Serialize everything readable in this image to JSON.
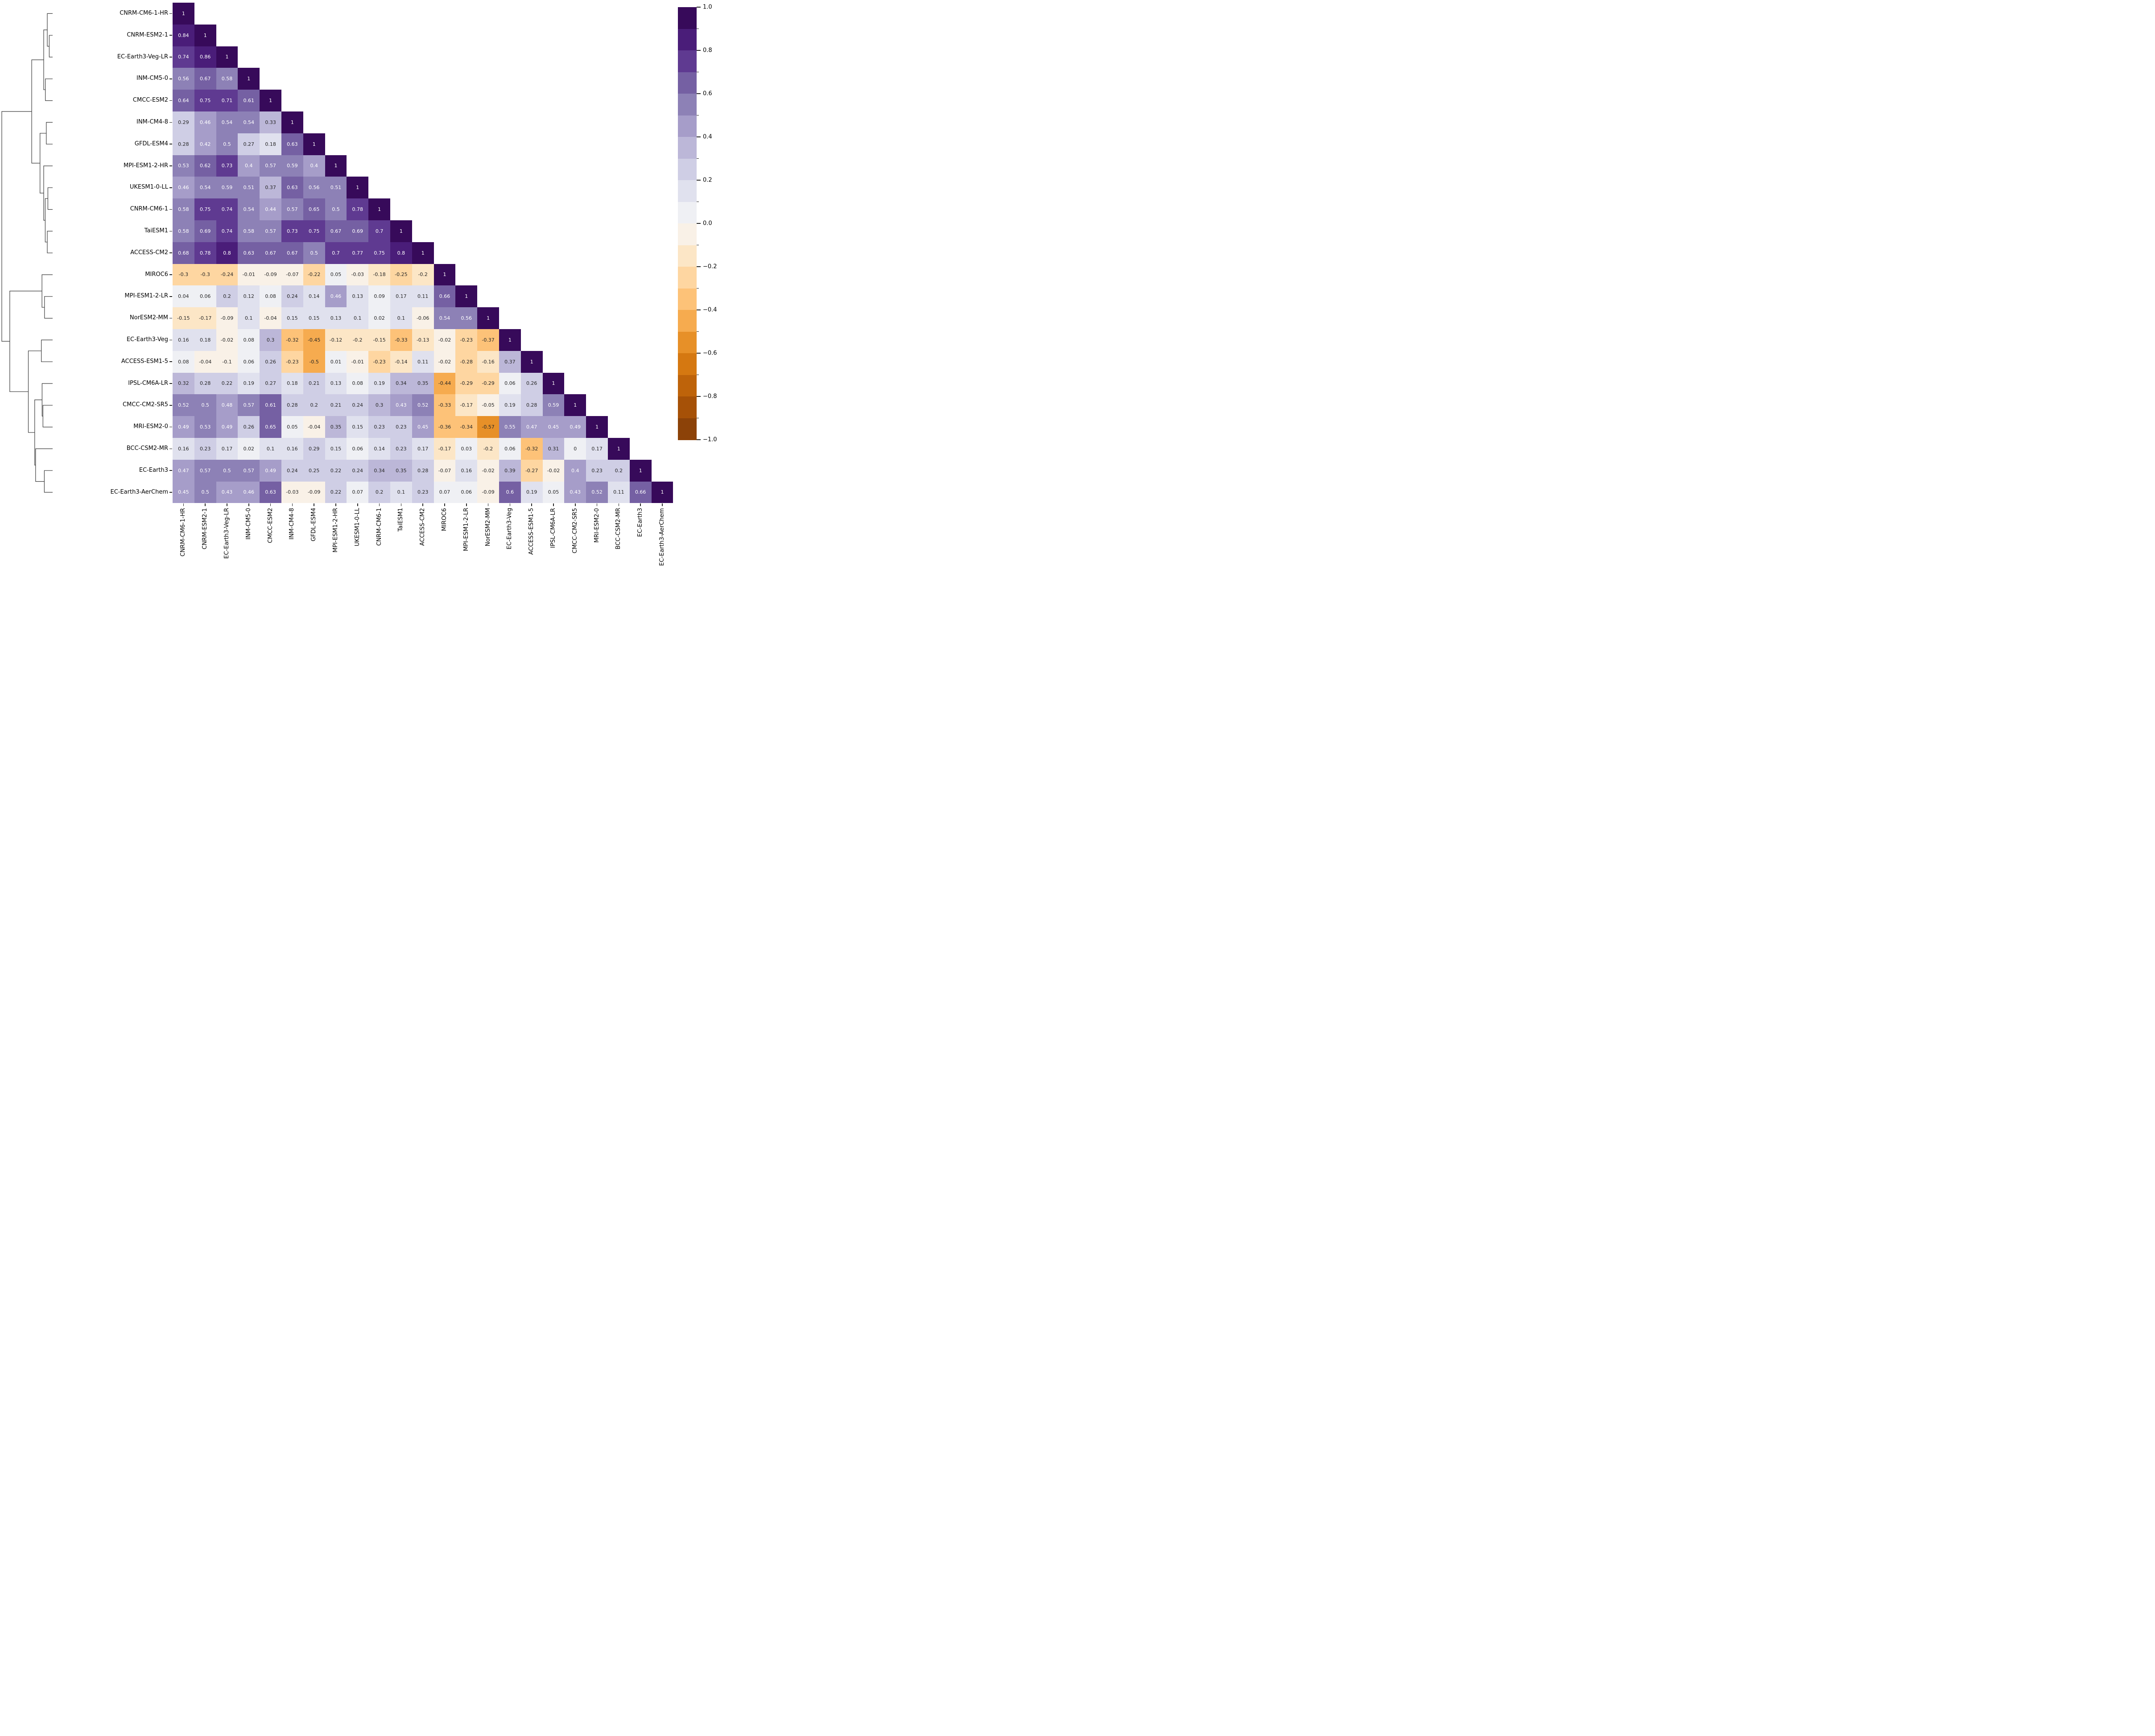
{
  "chart_data": {
    "type": "heatmap",
    "subtype": "correlation-matrix-lower-triangle-with-dendrogram",
    "title": "",
    "xlabel": "",
    "ylabel": "",
    "grid": false,
    "legend_position": "right-colorbar",
    "models": [
      "CNRM-CM6-1-HR",
      "CNRM-ESM2-1",
      "EC-Earth3-Veg-LR",
      "INM-CM5-0",
      "CMCC-ESM2",
      "INM-CM4-8",
      "GFDL-ESM4",
      "MPI-ESM1-2-HR",
      "UKESM1-0-LL",
      "CNRM-CM6-1",
      "TaiESM1",
      "ACCESS-CM2",
      "MIROC6",
      "MPI-ESM1-2-LR",
      "NorESM2-MM",
      "EC-Earth3-Veg",
      "ACCESS-ESM1-5",
      "IPSL-CM6A-LR",
      "CMCC-CM2-SR5",
      "MRI-ESM2-0",
      "BCC-CSM2-MR",
      "EC-Earth3",
      "EC-Earth3-AerChem"
    ],
    "matrix_lower_triangle": [
      [
        1
      ],
      [
        0.84,
        1
      ],
      [
        0.74,
        0.86,
        1
      ],
      [
        0.56,
        0.67,
        0.58,
        1
      ],
      [
        0.64,
        0.75,
        0.71,
        0.61,
        1
      ],
      [
        0.29,
        0.46,
        0.54,
        0.54,
        0.33,
        1
      ],
      [
        0.28,
        0.42,
        0.5,
        0.27,
        0.18,
        0.63,
        1
      ],
      [
        0.53,
        0.62,
        0.73,
        0.4,
        0.57,
        0.59,
        0.4,
        1
      ],
      [
        0.46,
        0.54,
        0.59,
        0.51,
        0.37,
        0.63,
        0.56,
        0.51,
        1
      ],
      [
        0.58,
        0.75,
        0.74,
        0.54,
        0.44,
        0.57,
        0.65,
        0.5,
        0.78,
        1
      ],
      [
        0.58,
        0.69,
        0.74,
        0.58,
        0.57,
        0.73,
        0.75,
        0.67,
        0.69,
        0.7,
        1
      ],
      [
        0.68,
        0.78,
        0.8,
        0.63,
        0.67,
        0.67,
        0.5,
        0.7,
        0.77,
        0.75,
        0.8,
        1
      ],
      [
        -0.3,
        -0.3,
        -0.24,
        -0.01,
        -0.09,
        -0.07,
        -0.22,
        0.05,
        -0.03,
        -0.18,
        -0.25,
        -0.2,
        1
      ],
      [
        0.04,
        0.06,
        0.2,
        0.12,
        0.08,
        0.24,
        0.14,
        0.46,
        0.13,
        0.09,
        0.17,
        0.11,
        0.66,
        1
      ],
      [
        -0.15,
        -0.17,
        -0.09,
        0.1,
        -0.04,
        0.15,
        0.15,
        0.13,
        0.1,
        0.02,
        0.1,
        -0.06,
        0.54,
        0.56,
        1
      ],
      [
        0.16,
        0.18,
        -0.02,
        0.08,
        0.3,
        -0.32,
        -0.45,
        -0.12,
        -0.2,
        -0.15,
        -0.33,
        -0.13,
        -0.02,
        -0.23,
        -0.37,
        1
      ],
      [
        0.08,
        -0.04,
        -0.1,
        0.06,
        0.26,
        -0.23,
        -0.5,
        0.01,
        -0.01,
        -0.23,
        -0.14,
        0.11,
        -0.02,
        -0.28,
        -0.16,
        0.37,
        1
      ],
      [
        0.32,
        0.28,
        0.22,
        0.19,
        0.27,
        0.18,
        0.21,
        0.13,
        0.08,
        0.19,
        0.34,
        0.35,
        -0.44,
        -0.29,
        -0.29,
        0.06,
        0.26,
        1
      ],
      [
        0.52,
        0.5,
        0.48,
        0.57,
        0.61,
        0.28,
        0.2,
        0.21,
        0.24,
        0.3,
        0.43,
        0.52,
        -0.33,
        -0.17,
        -0.05,
        0.19,
        0.28,
        0.59,
        1
      ],
      [
        0.49,
        0.53,
        0.49,
        0.26,
        0.65,
        0.05,
        -0.04,
        0.35,
        0.15,
        0.23,
        0.23,
        0.45,
        -0.36,
        -0.34,
        -0.57,
        0.55,
        0.47,
        0.45,
        0.49,
        1
      ],
      [
        0.16,
        0.23,
        0.17,
        0.02,
        0.1,
        0.16,
        0.29,
        0.15,
        0.06,
        0.14,
        0.23,
        0.17,
        -0.17,
        0.03,
        -0.2,
        0.06,
        -0.32,
        0.31,
        0,
        0.17,
        1
      ],
      [
        0.47,
        0.57,
        0.5,
        0.57,
        0.49,
        0.24,
        0.25,
        0.22,
        0.24,
        0.34,
        0.35,
        0.28,
        -0.07,
        0.16,
        -0.02,
        0.39,
        -0.27,
        -0.02,
        0.4,
        0.23,
        0.2,
        1
      ],
      [
        0.45,
        0.5,
        0.43,
        0.46,
        0.63,
        -0.03,
        -0.09,
        0.22,
        0.07,
        0.2,
        0.1,
        0.23,
        0.07,
        0.06,
        -0.09,
        0.6,
        0.19,
        0.05,
        0.43,
        0.52,
        0.11,
        0.66,
        1
      ]
    ],
    "value_domain": [
      -1,
      1
    ],
    "colormap": {
      "name": "PuOr",
      "discrete_bins": 20,
      "anchors": [
        "#7f3b08",
        "#b35806",
        "#e08214",
        "#fdb863",
        "#fee0b6",
        "#f7f7f7",
        "#d8daeb",
        "#b2abd2",
        "#8073ac",
        "#542788",
        "#2d004b"
      ]
    },
    "annotation_white_text_min_value": 0.4,
    "annotation_dark_color": "#262626",
    "colorbar": {
      "orientation": "vertical",
      "major_tick_labels": [
        "1.0",
        "0.8",
        "0.6",
        "0.4",
        "0.2",
        "0.0",
        "−0.2",
        "−0.4",
        "−0.6",
        "−0.8",
        "−1.0"
      ],
      "major_tick_values": [
        1.0,
        0.8,
        0.6,
        0.4,
        0.2,
        0.0,
        -0.2,
        -0.4,
        -0.6,
        -0.8,
        -1.0
      ],
      "minor_tick_values": [
        0.9,
        0.7,
        0.5,
        0.3,
        0.1,
        -0.1,
        -0.3,
        -0.5,
        -0.7,
        -0.9
      ]
    },
    "dendrogram": {
      "height": 1.0,
      "children": [
        {
          "height": 0.411,
          "children": [
            {
              "height": 0.175,
              "children": [
                {
                  "height": 0.105,
                  "children": [
                    {
                      "leaf": 0
                    },
                    {
                      "height": 0.067,
                      "children": [
                        {
                          "leaf": 1
                        },
                        {
                          "leaf": 2
                        }
                      ]
                    }
                  ]
                },
                {
                  "height": 0.143,
                  "children": [
                    {
                      "leaf": 3
                    },
                    {
                      "leaf": 4
                    }
                  ]
                }
              ]
            },
            {
              "height": 0.248,
              "children": [
                {
                  "height": 0.125,
                  "children": [
                    {
                      "leaf": 5
                    },
                    {
                      "leaf": 6
                    }
                  ]
                },
                {
                  "height": 0.175,
                  "children": [
                    {
                      "leaf": 7
                    },
                    {
                      "height": 0.146,
                      "children": [
                        {
                          "height": 0.093,
                          "children": [
                            {
                              "leaf": 8
                            },
                            {
                              "leaf": 9
                            }
                          ]
                        },
                        {
                          "height": 0.105,
                          "children": [
                            {
                              "leaf": 10
                            },
                            {
                              "leaf": 11
                            }
                          ]
                        }
                      ]
                    }
                  ]
                }
              ]
            }
          ]
        },
        {
          "height": 0.843,
          "children": [
            {
              "height": 0.21,
              "children": [
                {
                  "leaf": 12
                },
                {
                  "height": 0.16,
                  "children": [
                    {
                      "leaf": 13
                    },
                    {
                      "leaf": 14
                    }
                  ]
                }
              ]
            },
            {
              "height": 0.478,
              "children": [
                {
                  "height": 0.222,
                  "children": [
                    {
                      "leaf": 15
                    },
                    {
                      "leaf": 16
                    }
                  ]
                },
                {
                  "height": 0.353,
                  "children": [
                    {
                      "height": 0.207,
                      "children": [
                        {
                          "leaf": 17
                        },
                        {
                          "height": 0.19,
                          "children": [
                            {
                              "leaf": 18
                            },
                            {
                              "leaf": 19
                            }
                          ]
                        }
                      ]
                    },
                    {
                      "height": 0.335,
                      "children": [
                        {
                          "leaf": 20
                        },
                        {
                          "height": 0.163,
                          "children": [
                            {
                              "leaf": 21
                            },
                            {
                              "leaf": 22
                            }
                          ]
                        }
                      ]
                    }
                  ]
                }
              ]
            }
          ]
        }
      ]
    }
  }
}
